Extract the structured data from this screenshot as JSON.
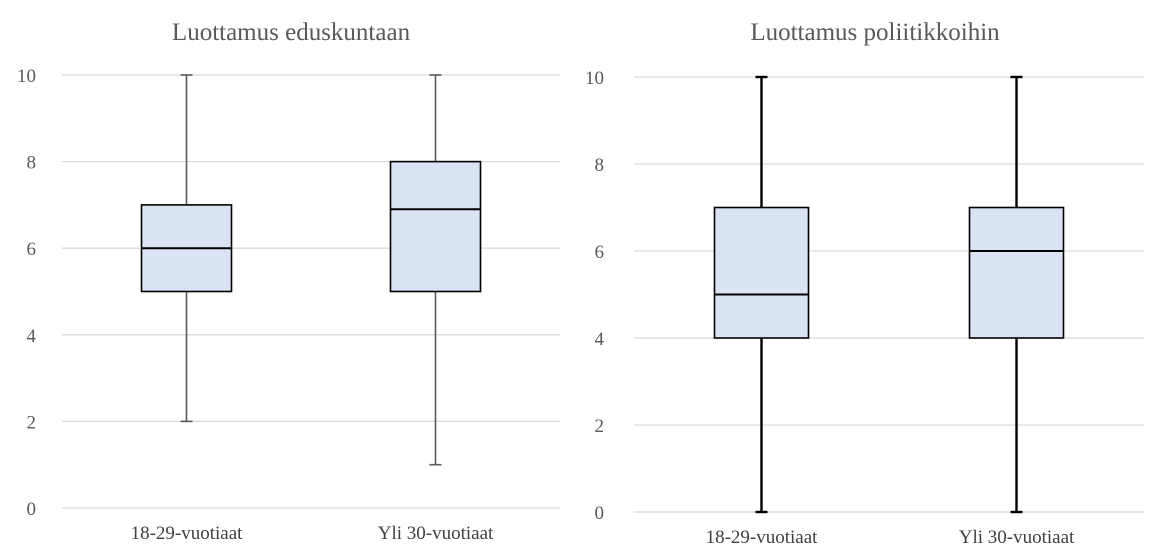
{
  "chart_data": [
    {
      "type": "box",
      "title": "Luottamus eduskuntaan",
      "categories": [
        "18-29-vuotiaat",
        "Yli 30-vuotiaat"
      ],
      "yticks": [
        "0",
        "2",
        "4",
        "6",
        "8",
        "10"
      ],
      "ylim": [
        0,
        10
      ],
      "grid": true,
      "box_fill": "#dae3f3",
      "whisker_color": "#595959",
      "boxes": [
        {
          "category": "18-29-vuotiaat",
          "min": 2,
          "q1": 5,
          "median": 6,
          "q3": 7,
          "max": 10
        },
        {
          "category": "Yli 30-vuotiaat",
          "min": 1,
          "q1": 5,
          "median": 6.9,
          "q3": 8,
          "max": 10
        }
      ]
    },
    {
      "type": "box",
      "title": "Luottamus poliitikkoihin",
      "categories": [
        "18-29-vuotiaat",
        "Yli 30-vuotiaat"
      ],
      "yticks": [
        "0",
        "2",
        "4",
        "6",
        "8",
        "10"
      ],
      "ylim": [
        0,
        10
      ],
      "grid": true,
      "box_fill": "#dae3f3",
      "whisker_color": "#000000",
      "boxes": [
        {
          "category": "18-29-vuotiaat",
          "min": 0,
          "q1": 4,
          "median": 5,
          "q3": 7,
          "max": 10
        },
        {
          "category": "Yli 30-vuotiaat",
          "min": 0,
          "q1": 4,
          "median": 6,
          "q3": 7,
          "max": 10
        }
      ]
    }
  ]
}
